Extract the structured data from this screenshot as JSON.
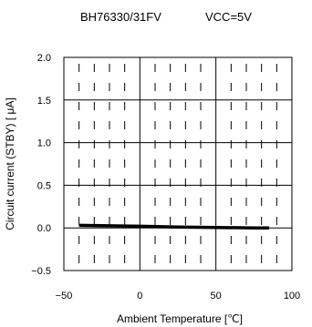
{
  "chart_data": {
    "type": "line",
    "title": "BH76330/31FV",
    "subtitle": "VCC=5V",
    "xlabel": "Ambient Temperature [℃]",
    "ylabel": "Circuit current (STBY) [ μA]",
    "xlim": [
      -50,
      100
    ],
    "ylim": [
      -0.5,
      2.0
    ],
    "xticks": [
      -50,
      0,
      50,
      100
    ],
    "xtick_labels": [
      "−50",
      "0",
      "50",
      "100"
    ],
    "yticks": [
      -0.5,
      0.0,
      0.5,
      1.0,
      1.5,
      2.0
    ],
    "ytick_labels": [
      "−0.5",
      "0.0",
      "0.5",
      "1.0",
      "1.5",
      "2.0"
    ],
    "grid": true,
    "series": [
      {
        "x": [
          -40,
          -20,
          0,
          25,
          50,
          75,
          85
        ],
        "values": [
          0.03,
          0.025,
          0.02,
          0.01,
          0.005,
          0.0,
          0.0
        ],
        "color": "#000000"
      }
    ]
  }
}
